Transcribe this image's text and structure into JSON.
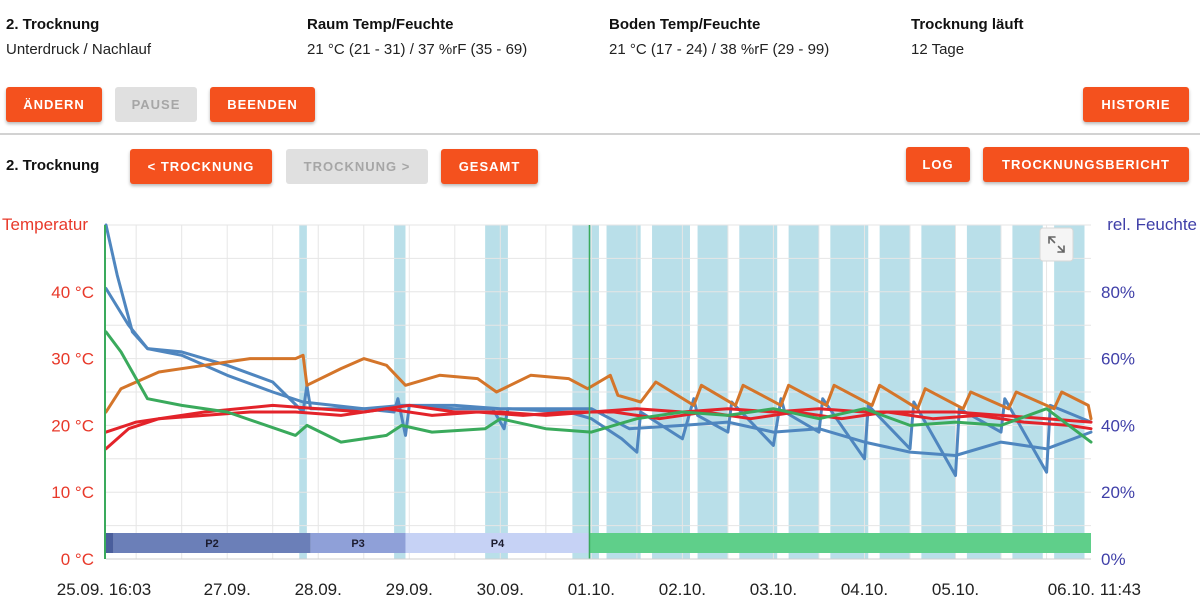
{
  "header": {
    "drying": {
      "title": "2. Trocknung",
      "value": "Unterdruck / Nachlauf"
    },
    "room": {
      "title": "Raum Temp/Feuchte",
      "value": "21 °C (21 - 31) / 37 %rF (35 - 69)"
    },
    "floor": {
      "title": "Boden Temp/Feuchte",
      "value": "21 °C (17 - 24) / 38 %rF (29 - 99)"
    },
    "running": {
      "title": "Trocknung läuft",
      "value": "12 Tage"
    }
  },
  "toolbar": {
    "change_label": "ÄNDERN",
    "pause_label": "PAUSE",
    "end_label": "BEENDEN",
    "history_label": "HISTORIE"
  },
  "section": {
    "title": "2. Trocknung",
    "prev_label": "< TROCKNUNG",
    "next_label": "TROCKNUNG >",
    "total_label": "GESAMT",
    "log_label": "LOG",
    "report_label": "TROCKNUNGSBERICHT"
  },
  "colors": {
    "accent": "#f4511e",
    "temp_axis": "#e8392a",
    "humidity_axis": "#3f3fa8",
    "shade": "#b9dfe9",
    "series_blue": "#4f86bf",
    "series_orange": "#d4752a",
    "series_red": "#e3232a",
    "series_green": "#3aaa5c"
  },
  "expand_icon": "expand-icon",
  "chart_data": {
    "type": "line",
    "ylabel": "Temperatur",
    "ylabel_right": "rel. Feuchte",
    "ylim": [
      0,
      50
    ],
    "ylim_right": [
      0,
      100
    ],
    "yticks": [
      "0 °C",
      "10 °C",
      "20 °C",
      "30 °C",
      "40 °C"
    ],
    "yticks_right": [
      "0%",
      "20%",
      "40%",
      "60%",
      "80%"
    ],
    "x_start_label": "25.09. 16:03",
    "x_end_label": "06.10. 11:43",
    "x_tick_labels": [
      "27.09.",
      "28.09.",
      "29.09.",
      "30.09.",
      "01.10.",
      "02.10.",
      "03.10.",
      "04.10.",
      "05.10."
    ],
    "grid": true,
    "phases": [
      {
        "name": "",
        "from": "25.09. 16:03",
        "to": "25.09. 18:00",
        "color": "#4a5e9c"
      },
      {
        "name": "P2",
        "from": "25.09. 18:00",
        "to": "27.09. 22:00",
        "color": "#6b7fb8"
      },
      {
        "name": "P3",
        "from": "27.09. 22:00",
        "to": "28.09. 23:00",
        "color": "#8fa0d8"
      },
      {
        "name": "P4",
        "from": "28.09. 23:00",
        "to": "30.09. 23:30",
        "color": "#c6d2f5"
      },
      {
        "name": "",
        "from": "30.09. 23:30",
        "to": "06.10. 11:43",
        "color": "#5fcf8a"
      }
    ],
    "shaded_periods": [
      [
        "27.09. 19:00",
        "27.09. 21:00"
      ],
      [
        "28.09. 20:00",
        "28.09. 23:00"
      ],
      [
        "29.09. 20:00",
        "30.09. 02:00"
      ],
      [
        "30.09. 19:00",
        "01.10. 02:00"
      ],
      [
        "01.10. 04:00",
        "01.10. 13:00"
      ],
      [
        "01.10. 16:00",
        "02.10. 02:00"
      ],
      [
        "02.10. 04:00",
        "02.10. 12:00"
      ],
      [
        "02.10. 15:00",
        "03.10. 01:00"
      ],
      [
        "03.10. 04:00",
        "03.10. 12:00"
      ],
      [
        "03.10. 15:00",
        "04.10. 01:00"
      ],
      [
        "04.10. 04:00",
        "04.10. 12:00"
      ],
      [
        "04.10. 15:00",
        "05.10. 00:00"
      ],
      [
        "05.10. 03:00",
        "05.10. 12:00"
      ],
      [
        "05.10. 15:00",
        "05.10. 23:00"
      ],
      [
        "06.10. 02:00",
        "06.10. 10:00"
      ]
    ],
    "series": [
      {
        "color": "blue",
        "axis": "humidity",
        "points": [
          [
            "25.09. 16:03",
            100
          ],
          [
            "25.09. 19:00",
            85
          ],
          [
            "25.09. 23:00",
            68
          ],
          [
            "26.09. 03:00",
            63
          ],
          [
            "26.09. 12:00",
            62
          ],
          [
            "27.09. 00:00",
            58
          ],
          [
            "27.09. 12:00",
            53
          ],
          [
            "27.09. 20:00",
            44
          ],
          [
            "27.09. 21:00",
            52
          ],
          [
            "27.09. 22:00",
            45
          ],
          [
            "28.09. 12:00",
            45
          ],
          [
            "28.09. 20:00",
            44
          ],
          [
            "28.09. 21:00",
            48
          ],
          [
            "28.09. 23:00",
            37
          ],
          [
            "29.09. 00:00",
            46
          ],
          [
            "29.09. 12:00",
            45
          ],
          [
            "29.09. 22:00",
            45
          ],
          [
            "30.09. 01:00",
            39
          ],
          [
            "30.09. 02:00",
            45
          ],
          [
            "30.09. 18:00",
            44
          ],
          [
            "01.10. 00:00",
            42
          ],
          [
            "01.10. 08:00",
            36
          ],
          [
            "01.10. 12:00",
            32
          ],
          [
            "01.10. 13:00",
            44
          ],
          [
            "02.10. 00:00",
            36
          ],
          [
            "02.10. 03:00",
            48
          ],
          [
            "02.10. 04:00",
            43
          ],
          [
            "02.10. 12:00",
            38
          ],
          [
            "02.10. 13:00",
            47
          ],
          [
            "03.10. 00:00",
            34
          ],
          [
            "03.10. 02:00",
            48
          ],
          [
            "03.10. 03:00",
            44
          ],
          [
            "03.10. 12:00",
            38
          ],
          [
            "03.10. 13:00",
            48
          ],
          [
            "04.10. 00:00",
            30
          ],
          [
            "04.10. 01:00",
            46
          ],
          [
            "04.10. 12:00",
            33
          ],
          [
            "04.10. 13:00",
            47
          ],
          [
            "05.10. 00:00",
            25
          ],
          [
            "05.10. 01:00",
            45
          ],
          [
            "05.10. 12:00",
            38
          ],
          [
            "05.10. 13:00",
            48
          ],
          [
            "06.10. 00:00",
            26
          ],
          [
            "06.10. 01:00",
            46
          ],
          [
            "06.10. 11:43",
            41
          ]
        ]
      },
      {
        "color": "blue",
        "axis": "humidity",
        "points": [
          [
            "25.09. 16:03",
            81
          ],
          [
            "25.09. 22:00",
            70
          ],
          [
            "26.09. 03:00",
            63
          ],
          [
            "26.09. 12:00",
            61
          ],
          [
            "27.09. 00:00",
            55
          ],
          [
            "27.09. 12:00",
            50
          ],
          [
            "27.09. 20:00",
            47
          ],
          [
            "28.09. 12:00",
            45
          ],
          [
            "28.09. 22:00",
            46
          ],
          [
            "29.09. 12:00",
            46
          ],
          [
            "30.09. 00:00",
            45
          ],
          [
            "01.10. 00:00",
            45
          ],
          [
            "01.10. 10:00",
            39
          ],
          [
            "02.10. 00:00",
            40
          ],
          [
            "02.10. 12:00",
            41
          ],
          [
            "03.10. 00:00",
            38
          ],
          [
            "03.10. 12:00",
            39
          ],
          [
            "04.10. 00:00",
            35
          ],
          [
            "04.10. 12:00",
            32
          ],
          [
            "05.10. 00:00",
            31
          ],
          [
            "05.10. 12:00",
            35
          ],
          [
            "06.10. 00:00",
            33
          ],
          [
            "06.10. 11:43",
            38
          ]
        ]
      },
      {
        "color": "orange",
        "axis": "temperature",
        "points": [
          [
            "25.09. 16:03",
            22
          ],
          [
            "25.09. 20:00",
            25.5
          ],
          [
            "26.09. 06:00",
            28
          ],
          [
            "26.09. 18:00",
            29
          ],
          [
            "27.09. 06:00",
            30
          ],
          [
            "27.09. 18:00",
            30
          ],
          [
            "27.09. 20:00",
            30.5
          ],
          [
            "27.09. 21:00",
            26
          ],
          [
            "28.09. 06:00",
            28.5
          ],
          [
            "28.09. 12:00",
            30
          ],
          [
            "28.09. 18:00",
            29
          ],
          [
            "28.09. 23:00",
            26
          ],
          [
            "29.09. 08:00",
            27.5
          ],
          [
            "29.09. 18:00",
            27
          ],
          [
            "29.09. 23:00",
            25
          ],
          [
            "30.09. 08:00",
            27.5
          ],
          [
            "30.09. 18:00",
            27
          ],
          [
            "30.09. 23:00",
            25.5
          ],
          [
            "01.10. 05:00",
            27.5
          ],
          [
            "01.10. 07:00",
            24.5
          ],
          [
            "01.10. 13:00",
            23.5
          ],
          [
            "01.10. 17:00",
            26.5
          ],
          [
            "02.10. 03:00",
            23
          ],
          [
            "02.10. 05:00",
            26
          ],
          [
            "02.10. 14:00",
            23
          ],
          [
            "02.10. 16:00",
            26
          ],
          [
            "03.10. 02:00",
            23
          ],
          [
            "03.10. 04:00",
            26
          ],
          [
            "03.10. 14:00",
            23
          ],
          [
            "03.10. 16:00",
            26
          ],
          [
            "04.10. 02:00",
            23
          ],
          [
            "04.10. 04:00",
            26
          ],
          [
            "04.10. 14:00",
            22.5
          ],
          [
            "04.10. 16:00",
            25.5
          ],
          [
            "05.10. 02:00",
            22.5
          ],
          [
            "05.10. 04:00",
            25
          ],
          [
            "05.10. 14:00",
            22.5
          ],
          [
            "05.10. 16:00",
            25
          ],
          [
            "06.10. 02:00",
            22.5
          ],
          [
            "06.10. 04:00",
            25
          ],
          [
            "06.10. 11:00",
            23
          ],
          [
            "06.10. 11:43",
            21
          ]
        ]
      },
      {
        "color": "red",
        "axis": "temperature",
        "points": [
          [
            "25.09. 16:03",
            16.5
          ],
          [
            "25.09. 22:00",
            19.5
          ],
          [
            "26.09. 06:00",
            21
          ],
          [
            "26.09. 18:00",
            21.5
          ],
          [
            "27.09. 06:00",
            22
          ],
          [
            "27.09. 18:00",
            22
          ],
          [
            "28.09. 06:00",
            21.5
          ],
          [
            "28.09. 18:00",
            22.5
          ],
          [
            "29.09. 06:00",
            21.5
          ],
          [
            "29.09. 18:00",
            22
          ],
          [
            "30.09. 06:00",
            21.5
          ],
          [
            "30.09. 18:00",
            22
          ],
          [
            "01.10. 06:00",
            22
          ],
          [
            "01.10. 18:00",
            21
          ],
          [
            "02.10. 06:00",
            22
          ],
          [
            "02.10. 18:00",
            21
          ],
          [
            "03.10. 06:00",
            22
          ],
          [
            "03.10. 18:00",
            21
          ],
          [
            "04.10. 06:00",
            22
          ],
          [
            "04.10. 18:00",
            21
          ],
          [
            "05.10. 06:00",
            21.5
          ],
          [
            "05.10. 18:00",
            20.5
          ],
          [
            "06.10. 06:00",
            20
          ],
          [
            "06.10. 11:43",
            19.5
          ]
        ]
      },
      {
        "color": "red",
        "axis": "temperature",
        "points": [
          [
            "25.09. 16:03",
            19
          ],
          [
            "26.09. 00:00",
            20.5
          ],
          [
            "26.09. 18:00",
            22
          ],
          [
            "27.09. 12:00",
            23
          ],
          [
            "28.09. 00:00",
            22.5
          ],
          [
            "28.09. 12:00",
            22
          ],
          [
            "29.09. 00:00",
            23
          ],
          [
            "29.09. 12:00",
            22
          ],
          [
            "30.09. 00:00",
            22
          ],
          [
            "30.09. 12:00",
            21.5
          ],
          [
            "01.10. 00:00",
            22
          ],
          [
            "01.10. 12:00",
            22.5
          ],
          [
            "02.10. 00:00",
            22
          ],
          [
            "02.10. 12:00",
            22.5
          ],
          [
            "03.10. 00:00",
            22
          ],
          [
            "03.10. 12:00",
            22.5
          ],
          [
            "04.10. 00:00",
            22
          ],
          [
            "04.10. 12:00",
            22
          ],
          [
            "05.10. 00:00",
            22
          ],
          [
            "05.10. 12:00",
            21.5
          ],
          [
            "06.10. 00:00",
            21
          ],
          [
            "06.10. 11:43",
            20.5
          ]
        ]
      },
      {
        "color": "green",
        "axis": "temperature",
        "points": [
          [
            "25.09. 16:03",
            34
          ],
          [
            "25.09. 20:00",
            31
          ],
          [
            "26.09. 03:00",
            24
          ],
          [
            "26.09. 12:00",
            23
          ],
          [
            "27.09. 00:00",
            22
          ],
          [
            "27.09. 18:00",
            18.5
          ],
          [
            "27.09. 21:00",
            20
          ],
          [
            "28.09. 06:00",
            17.5
          ],
          [
            "28.09. 18:00",
            18.5
          ],
          [
            "28.09. 22:00",
            20
          ],
          [
            "29.09. 06:00",
            19
          ],
          [
            "29.09. 20:00",
            19.5
          ],
          [
            "30.09. 00:00",
            21
          ],
          [
            "30.09. 12:00",
            19.5
          ],
          [
            "01.10. 00:00",
            19
          ],
          [
            "01.10. 12:00",
            21
          ],
          [
            "02.10. 00:00",
            22
          ],
          [
            "02.10. 12:00",
            21.5
          ],
          [
            "03.10. 00:00",
            22.5
          ],
          [
            "03.10. 12:00",
            21
          ],
          [
            "04.10. 00:00",
            22.5
          ],
          [
            "04.10. 12:00",
            20
          ],
          [
            "05.10. 00:00",
            20.5
          ],
          [
            "05.10. 12:00",
            20
          ],
          [
            "06.10. 00:00",
            22.5
          ],
          [
            "06.10. 11:43",
            17.5
          ]
        ]
      }
    ]
  }
}
